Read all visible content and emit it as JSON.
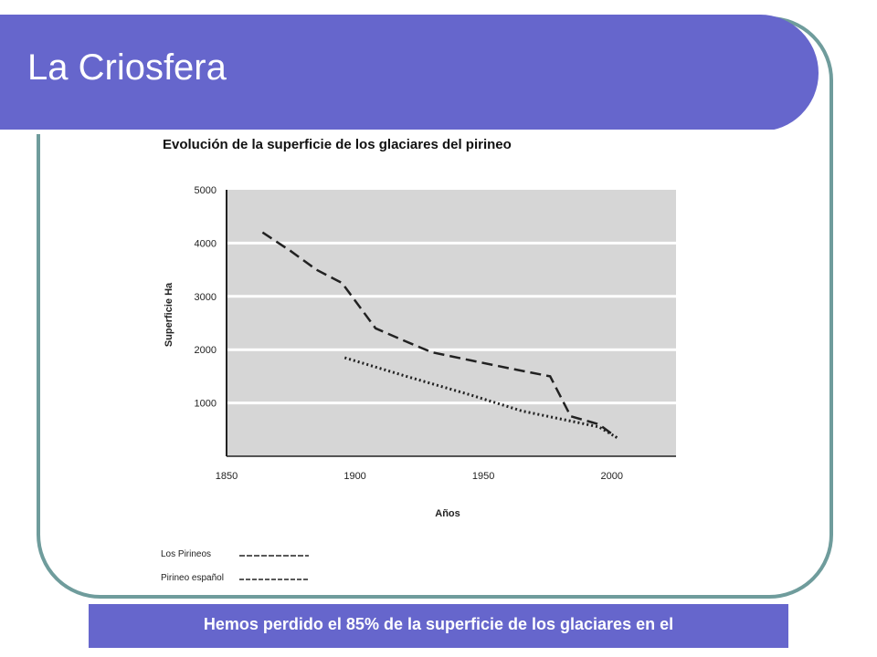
{
  "slide": {
    "title": "La Criosfera",
    "caption": "Hemos perdido el 85% de la superficie de los glaciares en el"
  },
  "colors": {
    "title_bar": "#6666cc",
    "frame_border": "#6f9c9c",
    "plot_background": "#d6d6d6",
    "gridline": "#ffffff",
    "series_line": "#222222"
  },
  "chart_data": {
    "type": "line",
    "title": "Evolución de la superficie de los glaciares del pirineo",
    "xlabel": "Años",
    "ylabel": "Superficie Ha",
    "xlim": [
      1850,
      2025
    ],
    "ylim": [
      0,
      5000
    ],
    "xticks": [
      "1850",
      "1900",
      "1950",
      "2000"
    ],
    "yticks": [
      "5000",
      "4000",
      "3000",
      "2000",
      "1000"
    ],
    "grid": true,
    "legend_position": "bottom-left",
    "series": [
      {
        "name": "Los Pirineos",
        "style": "dashed",
        "x": [
          1864,
          1875,
          1885,
          1895,
          1908,
          1920,
          1930,
          1945,
          1960,
          1976,
          1984,
          1995,
          2002
        ],
        "y": [
          4200,
          3850,
          3500,
          3250,
          2400,
          2150,
          1950,
          1800,
          1650,
          1500,
          750,
          600,
          350
        ]
      },
      {
        "name": "Pirineo español",
        "style": "dotted",
        "x": [
          1896,
          1920,
          1945,
          1965,
          1985,
          1995,
          2002
        ],
        "y": [
          1850,
          1500,
          1150,
          850,
          650,
          550,
          350
        ]
      }
    ]
  }
}
